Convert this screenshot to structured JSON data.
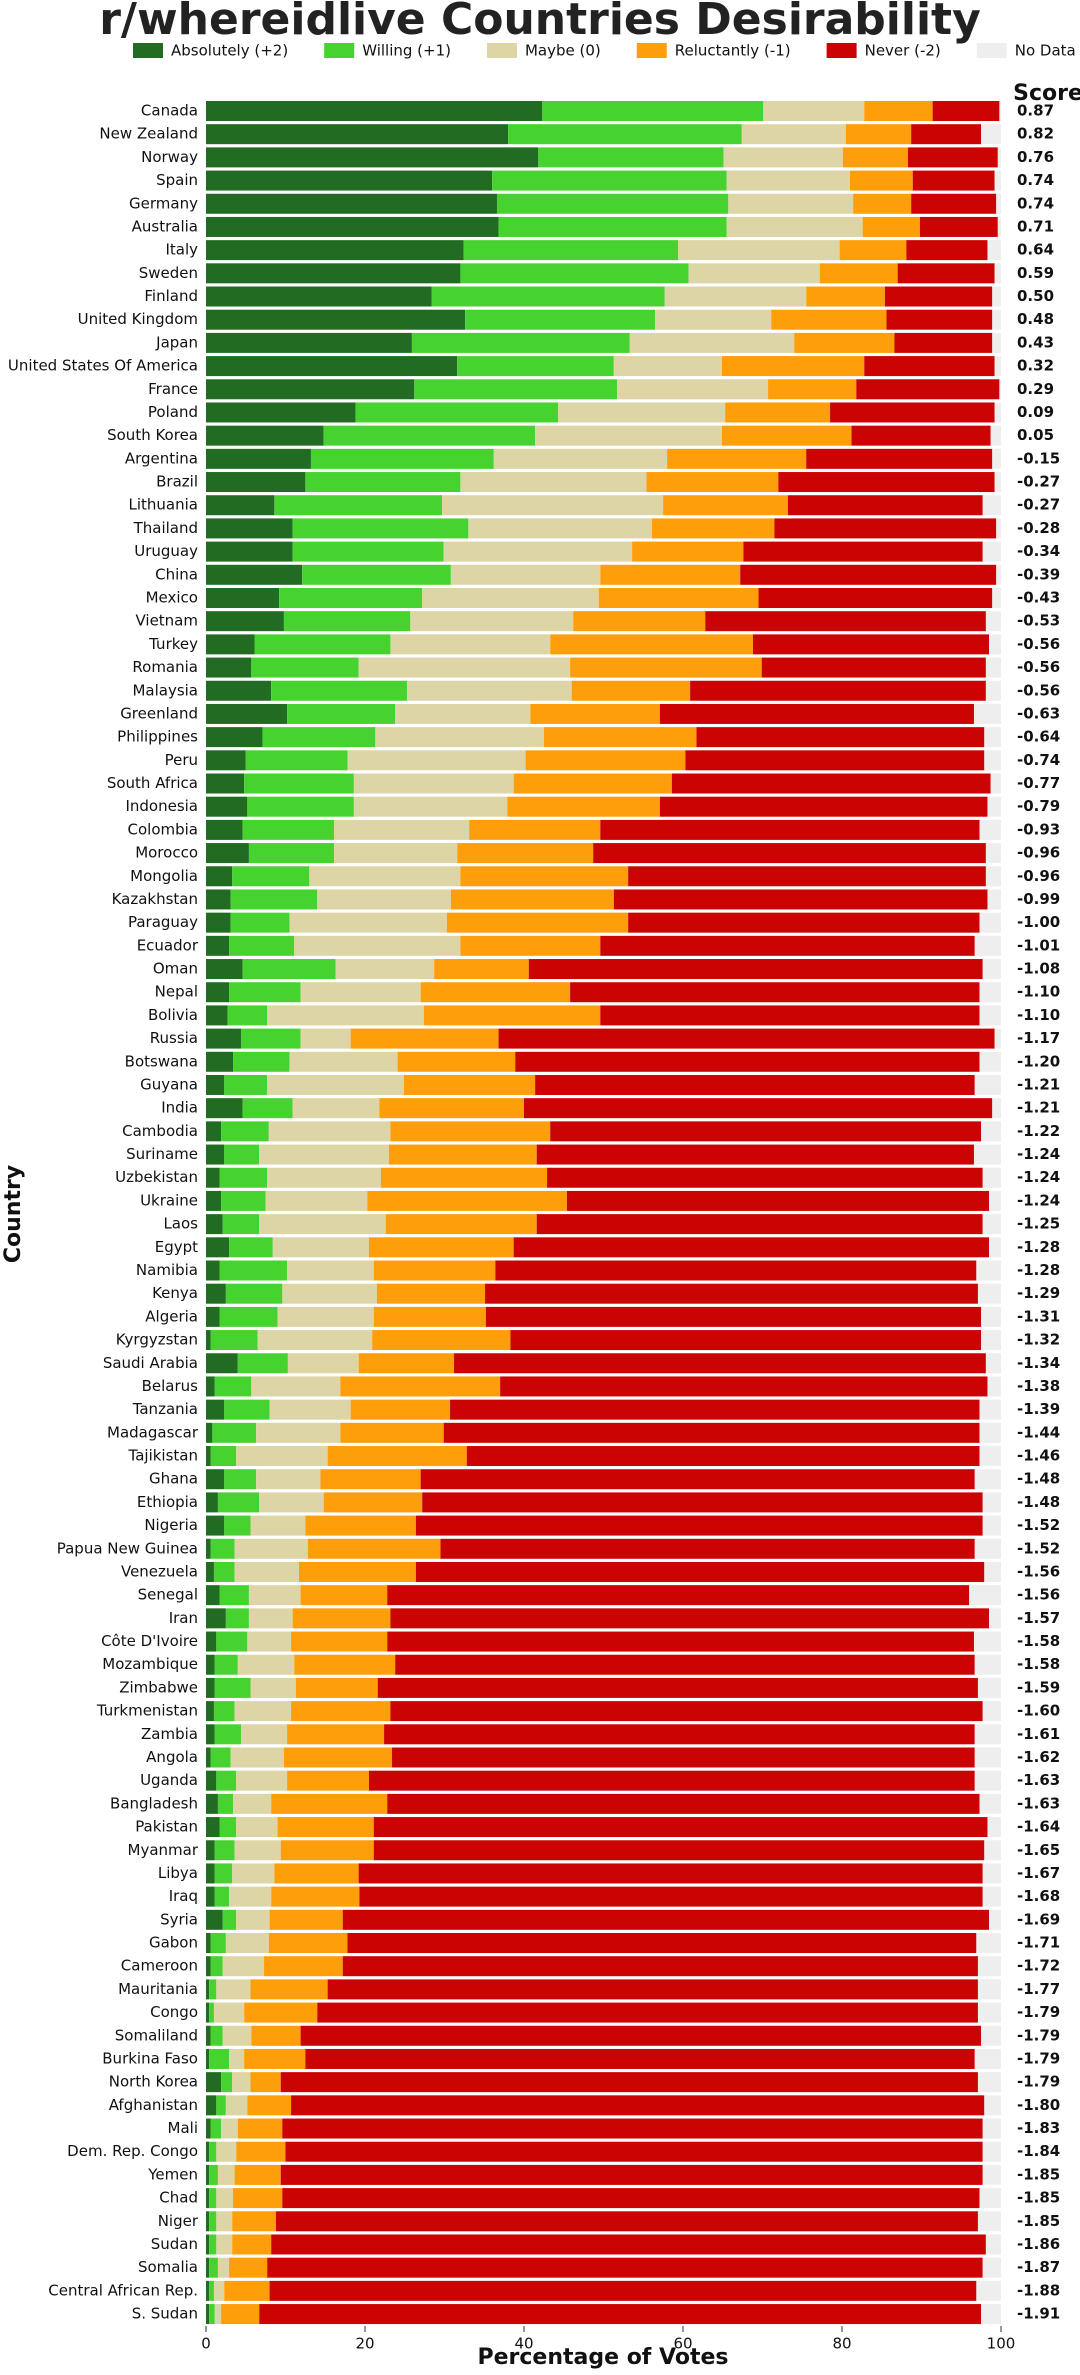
{
  "chart_data": {
    "type": "stacked-bar-horizontal",
    "title": "r/whereidlive Countries Desirability",
    "x_label": "Percentage of Votes",
    "y_label": "Country",
    "score_label": "Score",
    "xlim": [
      0,
      100
    ],
    "xticks": [
      0,
      20,
      40,
      60,
      80,
      100
    ],
    "categories": [
      "Canada",
      "New Zealand",
      "Norway",
      "Spain",
      "Germany",
      "Australia",
      "Italy",
      "Sweden",
      "Finland",
      "United Kingdom",
      "Japan",
      "United States Of America",
      "France",
      "Poland",
      "South Korea",
      "Argentina",
      "Brazil",
      "Lithuania",
      "Thailand",
      "Uruguay",
      "China",
      "Mexico",
      "Vietnam",
      "Turkey",
      "Romania",
      "Malaysia",
      "Greenland",
      "Philippines",
      "Peru",
      "South Africa",
      "Indonesia",
      "Colombia",
      "Morocco",
      "Mongolia",
      "Kazakhstan",
      "Paraguay",
      "Ecuador",
      "Oman",
      "Nepal",
      "Bolivia",
      "Russia",
      "Botswana",
      "Guyana",
      "India",
      "Cambodia",
      "Suriname",
      "Uzbekistan",
      "Ukraine",
      "Laos",
      "Egypt",
      "Namibia",
      "Kenya",
      "Algeria",
      "Kyrgyzstan",
      "Saudi Arabia",
      "Belarus",
      "Tanzania",
      "Madagascar",
      "Tajikistan",
      "Ghana",
      "Ethiopia",
      "Nigeria",
      "Papua New Guinea",
      "Venezuela",
      "Senegal",
      "Iran",
      "Côte D'Ivoire",
      "Mozambique",
      "Zimbabwe",
      "Turkmenistan",
      "Zambia",
      "Angola",
      "Uganda",
      "Bangladesh",
      "Pakistan",
      "Myanmar",
      "Libya",
      "Iraq",
      "Syria",
      "Gabon",
      "Cameroon",
      "Mauritania",
      "Congo",
      "Somaliland",
      "Burkina Faso",
      "North Korea",
      "Afghanistan",
      "Mali",
      "Dem. Rep. Congo",
      "Yemen",
      "Chad",
      "Niger",
      "Sudan",
      "Somalia",
      "Central African Rep.",
      "S. Sudan"
    ],
    "scores": [
      "0.87",
      "0.82",
      "0.76",
      "0.74",
      "0.74",
      "0.71",
      "0.64",
      "0.59",
      "0.50",
      "0.48",
      "0.43",
      "0.32",
      "0.29",
      "0.09",
      "0.05",
      "-0.15",
      "-0.27",
      "-0.27",
      "-0.28",
      "-0.34",
      "-0.39",
      "-0.43",
      "-0.53",
      "-0.56",
      "-0.56",
      "-0.56",
      "-0.63",
      "-0.64",
      "-0.74",
      "-0.77",
      "-0.79",
      "-0.93",
      "-0.96",
      "-0.96",
      "-0.99",
      "-1.00",
      "-1.01",
      "-1.08",
      "-1.10",
      "-1.10",
      "-1.17",
      "-1.20",
      "-1.21",
      "-1.21",
      "-1.22",
      "-1.24",
      "-1.24",
      "-1.24",
      "-1.25",
      "-1.28",
      "-1.28",
      "-1.29",
      "-1.31",
      "-1.32",
      "-1.34",
      "-1.38",
      "-1.39",
      "-1.44",
      "-1.46",
      "-1.48",
      "-1.48",
      "-1.52",
      "-1.52",
      "-1.56",
      "-1.56",
      "-1.57",
      "-1.58",
      "-1.58",
      "-1.59",
      "-1.60",
      "-1.61",
      "-1.62",
      "-1.63",
      "-1.63",
      "-1.64",
      "-1.65",
      "-1.67",
      "-1.68",
      "-1.69",
      "-1.71",
      "-1.72",
      "-1.77",
      "-1.79",
      "-1.79",
      "-1.79",
      "-1.79",
      "-1.80",
      "-1.83",
      "-1.84",
      "-1.85",
      "-1.85",
      "-1.85",
      "-1.86",
      "-1.87",
      "-1.88",
      "-1.91"
    ],
    "series": [
      {
        "name": "Absolutely (+2)",
        "color": "#226b22",
        "values": [
          42.3,
          38,
          41.8,
          36,
          36.6,
          36.8,
          32.4,
          32,
          28.4,
          32.6,
          25.9,
          31.6,
          26.2,
          18.8,
          14.8,
          13.2,
          12.5,
          8.6,
          10.9,
          10.9,
          12.1,
          9.2,
          9.8,
          6.1,
          5.7,
          8.2,
          10.2,
          7.1,
          5,
          4.8,
          5.2,
          4.6,
          5.4,
          3.3,
          3.1,
          3.1,
          2.9,
          4.6,
          2.9,
          2.7,
          4.4,
          3.4,
          2.3,
          4.6,
          1.9,
          2.3,
          1.7,
          1.9,
          2.1,
          2.9,
          1.7,
          2.5,
          1.7,
          0.6,
          4,
          1.1,
          2.3,
          0.8,
          0.6,
          2.3,
          1.5,
          2.3,
          0.6,
          1,
          1.7,
          2.5,
          1.3,
          1.1,
          1.1,
          1,
          1.1,
          0.6,
          1.3,
          1.5,
          1.7,
          1.1,
          1.1,
          1.1,
          2.1,
          0.6,
          0.6,
          0.4,
          0.4,
          0.6,
          0.4,
          1.9,
          1.3,
          0.6,
          0.4,
          0.4,
          0.4,
          0.4,
          0.4,
          0.4,
          0.4,
          0.4
        ]
      },
      {
        "name": "Willing (+1)",
        "color": "#47d32f",
        "values": [
          27.8,
          29.4,
          23.3,
          29.5,
          29.1,
          28.7,
          27,
          28.7,
          29.3,
          23.9,
          27.4,
          19.7,
          25.5,
          25.5,
          26.6,
          23,
          19.5,
          21.1,
          22.1,
          19,
          18.7,
          18,
          15.9,
          17.1,
          13.5,
          17.1,
          13.6,
          14.2,
          12.8,
          13.8,
          13.4,
          11.5,
          10.7,
          9.7,
          10.9,
          7.4,
          8.2,
          11.7,
          9,
          5,
          7.5,
          7.1,
          5.4,
          6.3,
          6,
          4.4,
          6,
          5.6,
          4.6,
          5.5,
          8.5,
          7.1,
          7.3,
          5.9,
          6.3,
          4.6,
          5.7,
          5.5,
          3.2,
          4,
          5.2,
          3.3,
          3,
          2.6,
          3.7,
          2.9,
          3.9,
          2.9,
          4.5,
          2.6,
          3.3,
          2.5,
          2.5,
          1.9,
          2.1,
          2.5,
          2.2,
          1.8,
          1.7,
          1.9,
          1.5,
          0.9,
          0.6,
          1.5,
          2.5,
          1.4,
          1.2,
          1.3,
          0.9,
          1.1,
          0.9,
          0.9,
          0.9,
          1.1,
          0.6,
          0.7
        ]
      },
      {
        "name": "Maybe (0)",
        "color": "#ddd5a5",
        "values": [
          12.7,
          13.1,
          15,
          15.5,
          15.7,
          17.1,
          20.3,
          16.5,
          17.8,
          14.6,
          20.7,
          13.6,
          19,
          21,
          23.5,
          21.8,
          23.4,
          27.8,
          23.1,
          23.7,
          18.8,
          22.2,
          20.5,
          20.1,
          26.6,
          20.7,
          17,
          21.2,
          22.4,
          20.1,
          19.3,
          17,
          15.5,
          19,
          16.8,
          19.8,
          20.9,
          12.4,
          15.1,
          19.7,
          6.3,
          13.6,
          17.2,
          10.9,
          15.3,
          16.3,
          14.3,
          12.8,
          15.9,
          12.1,
          10.9,
          11.9,
          12.1,
          14.4,
          8.9,
          11.2,
          10.2,
          10.6,
          11.5,
          8.1,
          8.1,
          6.9,
          9.2,
          8.1,
          6.5,
          5.5,
          5.5,
          7.1,
          5.7,
          7.1,
          5.8,
          6.7,
          6.4,
          4.8,
          5.2,
          5.8,
          5.3,
          5.3,
          4.2,
          5.4,
          5.2,
          4.3,
          3.8,
          3.6,
          1.9,
          2.3,
          2.7,
          2.1,
          2.5,
          2.1,
          2.1,
          2,
          2,
          1.4,
          1.3,
          0.8
        ]
      },
      {
        "name": "Reluctantly (-1)",
        "color": "#ff9e0b",
        "values": [
          8.6,
          8.2,
          8.2,
          7.9,
          7.3,
          7.2,
          8.4,
          9.8,
          9.9,
          14.5,
          12.6,
          17.9,
          11.1,
          13.2,
          16.3,
          17.5,
          16.6,
          15.7,
          15.4,
          14,
          17.6,
          20.1,
          16.6,
          25.5,
          24.1,
          14.9,
          16.3,
          19.2,
          20.1,
          19.9,
          19.2,
          16.5,
          17.1,
          21.1,
          20.5,
          22.8,
          17.6,
          11.9,
          18.8,
          22.2,
          18.6,
          14.8,
          16.5,
          18.2,
          20.1,
          18.6,
          20.9,
          25.1,
          19,
          18.2,
          15.3,
          13.6,
          14.1,
          17.4,
          12,
          20.1,
          12.5,
          13,
          17.5,
          12.6,
          12.4,
          13.9,
          16.7,
          14.7,
          10.9,
          12.3,
          12.1,
          12.7,
          10.3,
          12.5,
          12.2,
          13.6,
          10.3,
          14.6,
          12.1,
          11.7,
          10.6,
          11.1,
          9.2,
          9.9,
          9.9,
          9.7,
          9.2,
          6.2,
          7.7,
          3.8,
          5.5,
          5.6,
          6.2,
          5.8,
          6.2,
          5.5,
          4.9,
          4.8,
          5.7,
          4.8
        ]
      },
      {
        "name": "Never (-2)",
        "color": "#cc0303",
        "values": [
          8.4,
          8.8,
          11.3,
          10.3,
          10.7,
          9.8,
          10.2,
          12.2,
          13.5,
          13.3,
          12.3,
          16.4,
          18,
          20.7,
          17.5,
          23.4,
          27.2,
          24.5,
          27.9,
          30.1,
          32.2,
          29.4,
          35.3,
          29.7,
          28.2,
          37.2,
          39.5,
          36.2,
          37.6,
          40.1,
          41.2,
          47.7,
          49.4,
          45,
          47,
          44.2,
          47.1,
          57.1,
          51.5,
          47.7,
          62.4,
          58.4,
          55.3,
          58.9,
          54.2,
          55,
          54.8,
          53.1,
          56.1,
          59.8,
          60.5,
          62,
          62.3,
          59.2,
          66.9,
          61.3,
          66.6,
          67.4,
          64.5,
          69.7,
          70.5,
          71.3,
          67.2,
          71.5,
          73.2,
          75.3,
          73.8,
          72.9,
          75.5,
          74.5,
          74.3,
          73.3,
          76.2,
          74.5,
          77.2,
          76.8,
          78.5,
          78.4,
          81.3,
          79.1,
          79.9,
          81.8,
          83.1,
          85.6,
          84.2,
          87.7,
          87.2,
          88.1,
          87.7,
          88.3,
          87.7,
          88.3,
          89.9,
          90,
          88.9,
          90.8
        ]
      },
      {
        "name": "No Data",
        "color": "#eeeeee",
        "values": [
          0.2,
          2.5,
          0.4,
          0.8,
          0.6,
          0.4,
          1.7,
          0.8,
          1.1,
          1.1,
          1.1,
          0.8,
          0.2,
          0.8,
          1.3,
          1.1,
          0.8,
          2.3,
          0.6,
          2.3,
          0.6,
          1.1,
          1.9,
          1.5,
          1.9,
          1.9,
          3.4,
          2.1,
          2.1,
          1.3,
          1.7,
          2.7,
          1.9,
          1.9,
          1.7,
          2.7,
          3.3,
          2.3,
          2.7,
          2.7,
          0.8,
          2.7,
          3.3,
          1.1,
          2.5,
          3.4,
          2.3,
          1.5,
          2.3,
          1.5,
          3.1,
          2.9,
          2.5,
          2.5,
          1.9,
          1.7,
          2.7,
          2.7,
          2.7,
          3.3,
          2.3,
          2.3,
          3.3,
          2.1,
          4,
          1.5,
          3.4,
          3.3,
          2.9,
          2.3,
          3.3,
          3.3,
          3.3,
          2.7,
          1.7,
          2.1,
          2.3,
          2.3,
          1.5,
          3.1,
          2.9,
          2.9,
          2.9,
          2.5,
          3.3,
          2.9,
          2.1,
          2.3,
          2.3,
          2.3,
          2.7,
          2.9,
          1.9,
          2.3,
          3.1,
          2.5
        ]
      }
    ]
  }
}
